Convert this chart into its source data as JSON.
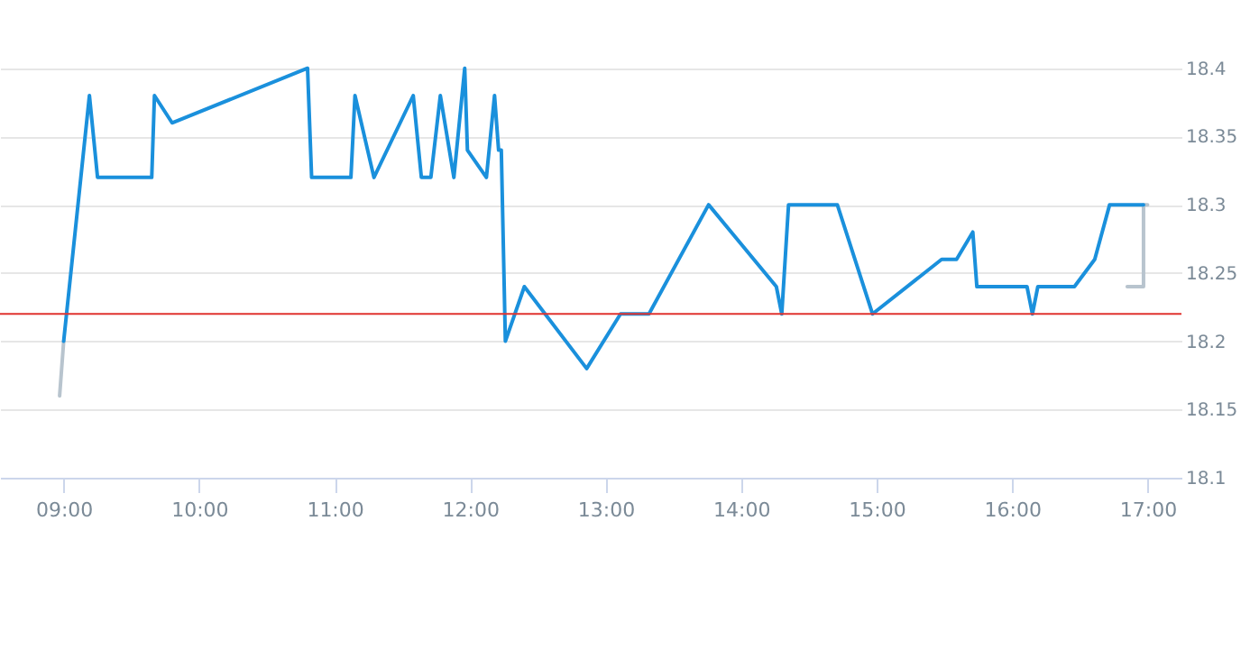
{
  "chart_data": {
    "type": "line",
    "xlim": [
      8.53,
      17.25
    ],
    "ylim": [
      18.1,
      18.45
    ],
    "xticks": [
      {
        "value": 9,
        "label": "09:00"
      },
      {
        "value": 10,
        "label": "10:00"
      },
      {
        "value": 11,
        "label": "11:00"
      },
      {
        "value": 12,
        "label": "12:00"
      },
      {
        "value": 13,
        "label": "13:00"
      },
      {
        "value": 14,
        "label": "14:00"
      },
      {
        "value": 15,
        "label": "15:00"
      },
      {
        "value": 16,
        "label": "16:00"
      },
      {
        "value": 17,
        "label": "17:00"
      }
    ],
    "yticks": [
      18.1,
      18.15,
      18.2,
      18.25,
      18.3,
      18.35,
      18.4
    ],
    "grid": "y",
    "marker": "none",
    "line_style": "solid",
    "series": [
      {
        "color": "#b8c4ce",
        "x": [
          8.97,
          9.0
        ],
        "values": [
          18.16,
          18.2
        ]
      },
      {
        "color": "#b8c4ce",
        "x": [
          17.0,
          16.97,
          16.97,
          16.85
        ],
        "values": [
          18.3,
          18.3,
          18.24,
          18.24
        ]
      },
      {
        "color": "#1a90dc",
        "x": [
          9.0,
          9.19,
          9.25,
          9.65,
          9.67,
          9.8,
          10.8,
          10.83,
          11.12,
          11.15,
          11.29,
          11.58,
          11.64,
          11.71,
          11.78,
          11.88,
          11.96,
          11.98,
          12.12,
          12.18,
          12.21,
          12.23,
          12.26,
          12.4,
          12.86,
          13.11,
          13.32,
          13.76,
          14.26,
          14.3,
          14.35,
          14.71,
          14.97,
          15.48,
          15.59,
          15.71,
          15.74,
          16.11,
          16.15,
          16.19,
          16.46,
          16.61,
          16.72,
          16.97
        ],
        "values": [
          18.2,
          18.38,
          18.32,
          18.32,
          18.38,
          18.36,
          18.4,
          18.32,
          18.32,
          18.38,
          18.32,
          18.38,
          18.32,
          18.32,
          18.38,
          18.32,
          18.4,
          18.34,
          18.32,
          18.38,
          18.34,
          18.34,
          18.2,
          18.24,
          18.18,
          18.22,
          18.22,
          18.3,
          18.24,
          18.22,
          18.3,
          18.3,
          18.22,
          18.26,
          18.26,
          18.28,
          18.24,
          18.24,
          18.22,
          18.24,
          18.24,
          18.26,
          18.3,
          18.3
        ]
      }
    ],
    "ref_lines": [
      {
        "axis": "y",
        "value": 18.22,
        "color": "#e0332f"
      }
    ]
  }
}
